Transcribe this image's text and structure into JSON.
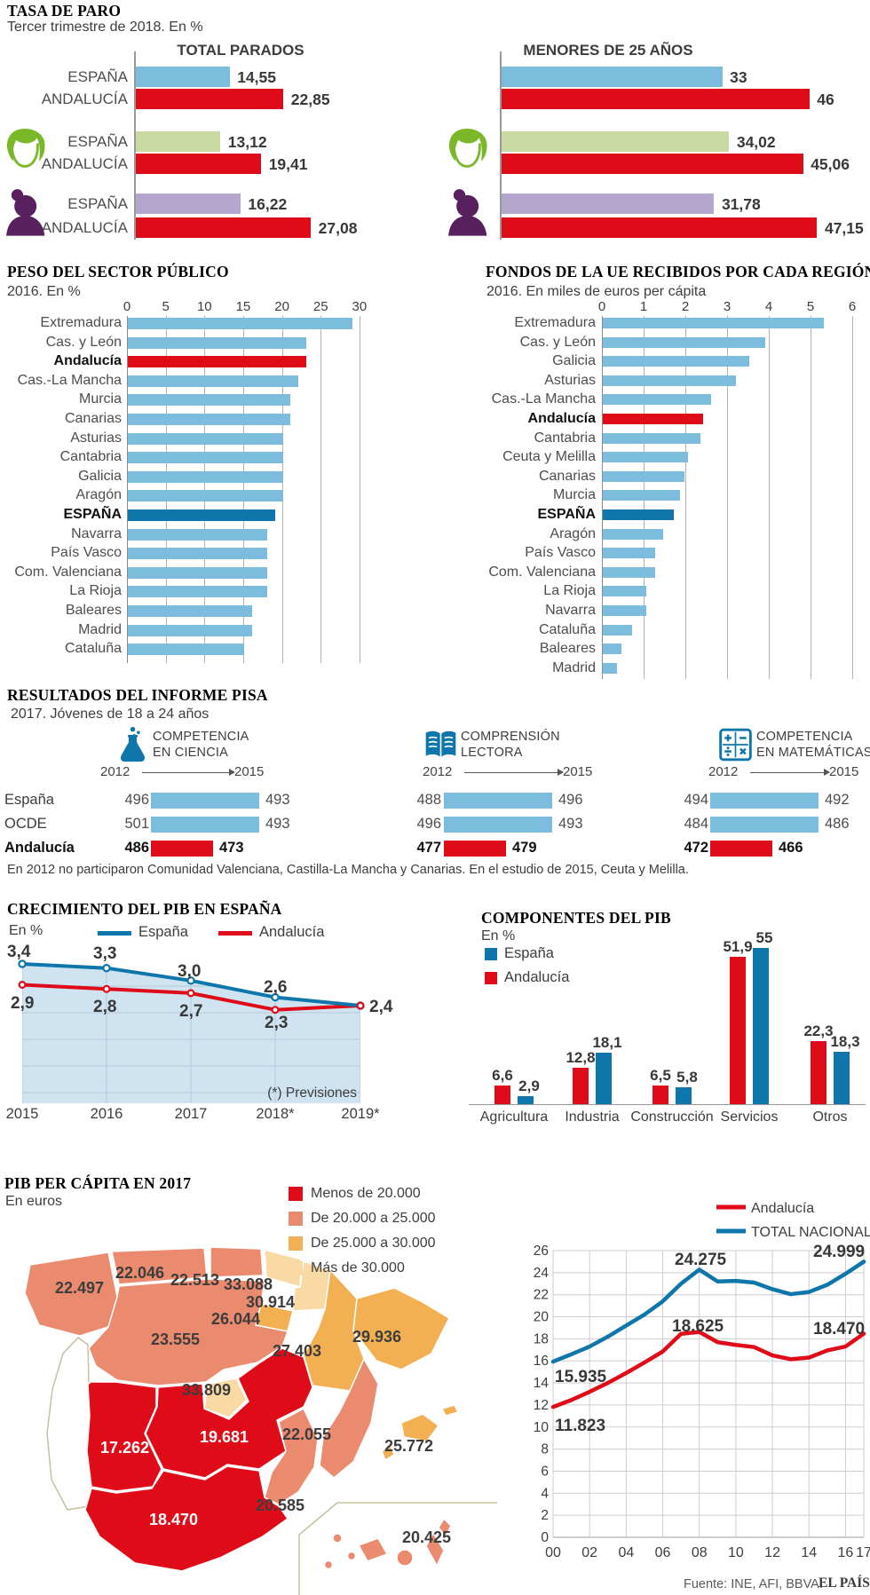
{
  "footer": {
    "source": "Fuente: INE, AFI, BBVA.",
    "brand": "EL PAÍS"
  },
  "colors": {
    "light_blue": "#7cbcdc",
    "dark_blue": "#0e76aa",
    "red": "#e00b19",
    "light_green": "#c8d9a2",
    "green": "#7ab829",
    "light_purple": "#b5a6ce",
    "purple": "#58215e",
    "salmon": "#ea8a6e",
    "orange": "#f3b053",
    "cream": "#f9d9a4",
    "grid": "#b3b3b3",
    "axis": "#8c8c8c",
    "area_fill": "#cfe3f1",
    "area_grid": "#b5cadb",
    "evo_grid": "#cdcdcd",
    "text_dark": "#383838",
    "text_mid": "#4d4d4d",
    "text_soft": "#3d3d3d"
  },
  "chart_data": [
    {
      "id": "tasa_de_paro",
      "type": "bar",
      "title": "TASA DE PARO",
      "subtitle": "Tercer trimestre de 2018. En %",
      "panels": [
        "TOTAL PARADOS",
        "MENORES DE 25 AÑOS"
      ],
      "groups": [
        {
          "segment": "total",
          "icon": null,
          "rows": [
            {
              "label": "ESPAÑA",
              "total_parados": 14.55,
              "total_parados_text": "14,55",
              "menores_25": 33,
              "menores_25_text": "33",
              "color": "light_blue"
            },
            {
              "label": "ANDALUCÍA",
              "total_parados": 22.85,
              "total_parados_text": "22,85",
              "menores_25": 46,
              "menores_25_text": "46",
              "color": "red"
            }
          ]
        },
        {
          "segment": "hombres",
          "icon": "man-icon",
          "rows": [
            {
              "label": "ESPAÑA",
              "total_parados": 13.12,
              "total_parados_text": "13,12",
              "menores_25": 34.02,
              "menores_25_text": "34,02",
              "color": "light_green"
            },
            {
              "label": "ANDALUCÍA",
              "total_parados": 19.41,
              "total_parados_text": "19,41",
              "menores_25": 45.06,
              "menores_25_text": "45,06",
              "color": "red"
            }
          ]
        },
        {
          "segment": "mujeres",
          "icon": "woman-icon",
          "rows": [
            {
              "label": "ESPAÑA",
              "total_parados": 16.22,
              "total_parados_text": "16,22",
              "menores_25": 31.78,
              "menores_25_text": "31,78",
              "color": "light_purple"
            },
            {
              "label": "ANDALUCÍA",
              "total_parados": 27.08,
              "total_parados_text": "27,08",
              "menores_25": 47.15,
              "menores_25_text": "47,15",
              "color": "red"
            }
          ]
        }
      ]
    },
    {
      "id": "peso_sector_publico",
      "type": "bar",
      "orientation": "horizontal",
      "title": "PESO DEL SECTOR PÚBLICO",
      "subtitle": "2016. En %",
      "xlim": [
        0,
        30
      ],
      "ticks": [
        0,
        5,
        10,
        15,
        20,
        25,
        30
      ],
      "rows": [
        {
          "name": "Extremadura",
          "value": 29
        },
        {
          "name": "Cas. y León",
          "value": 23
        },
        {
          "name": "Andalucía",
          "value": 23,
          "highlight": "red"
        },
        {
          "name": "Cas.-La Mancha",
          "value": 22
        },
        {
          "name": "Murcia",
          "value": 21
        },
        {
          "name": "Canarias",
          "value": 21
        },
        {
          "name": "Asturias",
          "value": 20
        },
        {
          "name": "Cantabria",
          "value": 20
        },
        {
          "name": "Galicia",
          "value": 20
        },
        {
          "name": "Aragón",
          "value": 20
        },
        {
          "name": "ESPAÑA",
          "value": 19,
          "highlight": "dark_blue"
        },
        {
          "name": "Navarra",
          "value": 18
        },
        {
          "name": "País Vasco",
          "value": 18
        },
        {
          "name": "Com. Valenciana",
          "value": 18
        },
        {
          "name": "La Rioja",
          "value": 18
        },
        {
          "name": "Baleares",
          "value": 16
        },
        {
          "name": "Madrid",
          "value": 16
        },
        {
          "name": "Cataluña",
          "value": 15
        }
      ]
    },
    {
      "id": "fondos_ue",
      "type": "bar",
      "orientation": "horizontal",
      "title": "FONDOS DE LA UE RECIBIDOS POR CADA REGIÓN",
      "subtitle": "2016. En miles de euros per cápita",
      "xlim": [
        0,
        6
      ],
      "ticks": [
        0,
        1,
        2,
        3,
        4,
        5,
        6
      ],
      "rows": [
        {
          "name": "Extremadura",
          "value": 5.3
        },
        {
          "name": "Cas. y León",
          "value": 3.9
        },
        {
          "name": "Galicia",
          "value": 3.5
        },
        {
          "name": "Asturias",
          "value": 3.2
        },
        {
          "name": "Cas.-La Mancha",
          "value": 2.6
        },
        {
          "name": "Andalucía",
          "value": 2.4,
          "highlight": "red"
        },
        {
          "name": "Cantabria",
          "value": 2.35
        },
        {
          "name": "Ceuta y Melilla",
          "value": 2.05
        },
        {
          "name": "Canarias",
          "value": 1.95
        },
        {
          "name": "Murcia",
          "value": 1.85
        },
        {
          "name": "ESPAÑA",
          "value": 1.7,
          "highlight": "dark_blue"
        },
        {
          "name": "Aragón",
          "value": 1.45
        },
        {
          "name": "País Vasco",
          "value": 1.25
        },
        {
          "name": "Com. Valenciana",
          "value": 1.25
        },
        {
          "name": "La Rioja",
          "value": 1.05
        },
        {
          "name": "Navarra",
          "value": 1.05
        },
        {
          "name": "Cataluña",
          "value": 0.7
        },
        {
          "name": "Baleares",
          "value": 0.45
        },
        {
          "name": "Madrid",
          "value": 0.35
        }
      ]
    },
    {
      "id": "pisa",
      "type": "bar",
      "title": "RESULTADOS DEL INFORME PISA",
      "subtitle": "2017. Jóvenes de 18 a 24 años",
      "note": "En 2012 no participaron Comunidad Valenciana, Castilla-La Mancha y Canarias. En el estudio de 2015, Ceuta y Melilla.",
      "year_start": "2012",
      "year_end": "2015",
      "entities": [
        "España",
        "OCDE",
        "Andalucía"
      ],
      "competencies": [
        {
          "icon": "flask-icon",
          "name_line1": "COMPETENCIA",
          "name_line2": "EN CIENCIA",
          "values": {
            "España": [
              496,
              493
            ],
            "OCDE": [
              501,
              493
            ],
            "Andalucía": [
              486,
              473
            ]
          }
        },
        {
          "icon": "book-icon",
          "name_line1": "COMPRENSIÓN",
          "name_line2": "LECTORA",
          "values": {
            "España": [
              488,
              496
            ],
            "OCDE": [
              496,
              493
            ],
            "Andalucía": [
              477,
              479
            ]
          }
        },
        {
          "icon": "math-icon",
          "name_line1": "COMPETENCIA",
          "name_line2": "EN MATEMÁTICAS",
          "values": {
            "España": [
              494,
              492
            ],
            "OCDE": [
              484,
              486
            ],
            "Andalucía": [
              472,
              466
            ]
          }
        }
      ]
    },
    {
      "id": "crecimiento_pib",
      "type": "line",
      "title": "CRECIMIENTO DEL PIB EN ESPAÑA",
      "ylabel": "En %",
      "note": "(*) Previsiones",
      "categories": [
        "2015",
        "2016",
        "2017",
        "2018*",
        "2019*"
      ],
      "series": [
        {
          "name": "España",
          "color": "dark_blue",
          "values": [
            3.4,
            3.3,
            3.0,
            2.6,
            2.4
          ],
          "labels": [
            "3,4",
            "3,3",
            "3,0",
            "2,6",
            "2,4"
          ]
        },
        {
          "name": "Andalucía",
          "color": "red",
          "values": [
            2.9,
            2.8,
            2.7,
            2.3,
            2.4
          ],
          "labels": [
            "2,9",
            "2,8",
            "2,7",
            "2,3",
            ""
          ]
        }
      ]
    },
    {
      "id": "componentes_pib",
      "type": "bar",
      "title": "COMPONENTES DEL PIB",
      "ylabel": "En %",
      "categories": [
        "Agricultura",
        "Industria",
        "Construcción",
        "Servicios",
        "Otros"
      ],
      "legend": [
        {
          "name": "España",
          "color": "dark_blue"
        },
        {
          "name": "Andalucía",
          "color": "red"
        }
      ],
      "series": [
        {
          "name": "Andalucía",
          "color": "red",
          "values": [
            6.6,
            12.8,
            6.5,
            51.9,
            22.3
          ],
          "labels": [
            "6,6",
            "12,8",
            "6,5",
            "51,9",
            "22,3"
          ]
        },
        {
          "name": "España",
          "color": "dark_blue",
          "values": [
            2.9,
            18.1,
            5.8,
            55,
            18.3
          ],
          "labels": [
            "2,9",
            "18,1",
            "5,8",
            "55",
            "18,3"
          ]
        }
      ]
    },
    {
      "id": "pib_per_capita_mapa",
      "type": "heatmap",
      "title": "PIB PER CÁPITA EN 2017",
      "unit": "En euros",
      "legend": [
        {
          "label": "Menos de 20.000",
          "color": "red"
        },
        {
          "label": "De 20.000 a 25.000",
          "color": "salmon"
        },
        {
          "label": "De 25.000 a 30.000",
          "color": "orange"
        },
        {
          "label": "Más de 30.000",
          "color": "cream"
        }
      ],
      "regions": [
        {
          "name": "Galicia",
          "value_text": "22.497",
          "bucket": "salmon"
        },
        {
          "name": "Asturias",
          "value_text": "22.046",
          "bucket": "salmon"
        },
        {
          "name": "Cantabria",
          "value_text": "22.513",
          "bucket": "salmon"
        },
        {
          "name": "País Vasco",
          "value_text": "33.088",
          "bucket": "cream"
        },
        {
          "name": "Navarra",
          "value_text": "30.914",
          "bucket": "cream"
        },
        {
          "name": "La Rioja",
          "value_text": "26.044",
          "bucket": "orange"
        },
        {
          "name": "Castilla y León",
          "value_text": "23.555",
          "bucket": "salmon"
        },
        {
          "name": "Aragón",
          "value_text": "27.403",
          "bucket": "orange"
        },
        {
          "name": "Cataluña",
          "value_text": "29.936",
          "bucket": "orange"
        },
        {
          "name": "Madrid",
          "value_text": "33.809",
          "bucket": "cream"
        },
        {
          "name": "Castilla-La Mancha",
          "value_text": "19.681",
          "bucket": "red"
        },
        {
          "name": "Extremadura",
          "value_text": "17.262",
          "bucket": "red"
        },
        {
          "name": "Com. Valenciana",
          "value_text": "22.055",
          "bucket": "salmon"
        },
        {
          "name": "Murcia",
          "value_text": "20.585",
          "bucket": "salmon"
        },
        {
          "name": "Andalucía",
          "value_text": "18.470",
          "bucket": "red"
        },
        {
          "name": "Baleares",
          "value_text": "25.772",
          "bucket": "orange"
        },
        {
          "name": "Canarias",
          "value_text": "20.425",
          "bucket": "salmon"
        }
      ]
    },
    {
      "id": "pib_per_capita_evolucion",
      "type": "line",
      "legend": [
        {
          "name": "Andalucía",
          "color": "red"
        },
        {
          "name": "TOTAL NACIONAL",
          "color": "dark_blue"
        }
      ],
      "ylim": [
        0,
        26
      ],
      "y_step": 2,
      "x_tick_labels": [
        "00",
        "02",
        "04",
        "06",
        "08",
        "10",
        "12",
        "14",
        "16",
        "17"
      ],
      "years": [
        2000,
        2001,
        2002,
        2003,
        2004,
        2005,
        2006,
        2007,
        2008,
        2009,
        2010,
        2011,
        2012,
        2013,
        2014,
        2015,
        2016,
        2017
      ],
      "series": [
        {
          "name": "TOTAL NACIONAL",
          "color": "dark_blue",
          "values": [
            15.935,
            16.6,
            17.3,
            18.2,
            19.2,
            20.2,
            21.4,
            23.0,
            24.275,
            23.2,
            23.25,
            23.1,
            22.5,
            22.05,
            22.25,
            22.9,
            23.9,
            24.999
          ]
        },
        {
          "name": "Andalucía",
          "color": "red",
          "values": [
            11.823,
            12.45,
            13.2,
            14.0,
            14.9,
            15.85,
            16.85,
            18.45,
            18.625,
            17.7,
            17.45,
            17.25,
            16.5,
            16.15,
            16.3,
            16.95,
            17.3,
            18.47
          ]
        }
      ],
      "annotations": [
        {
          "text": "15.935",
          "series": "TOTAL NACIONAL",
          "pos": "start"
        },
        {
          "text": "11.823",
          "series": "Andalucía",
          "pos": "start"
        },
        {
          "text": "24.275",
          "series": "TOTAL NACIONAL",
          "pos": "peak"
        },
        {
          "text": "18.625",
          "series": "Andalucía",
          "pos": "peak"
        },
        {
          "text": "24.999",
          "series": "TOTAL NACIONAL",
          "pos": "end"
        },
        {
          "text": "18.470",
          "series": "Andalucía",
          "pos": "end"
        }
      ]
    }
  ]
}
